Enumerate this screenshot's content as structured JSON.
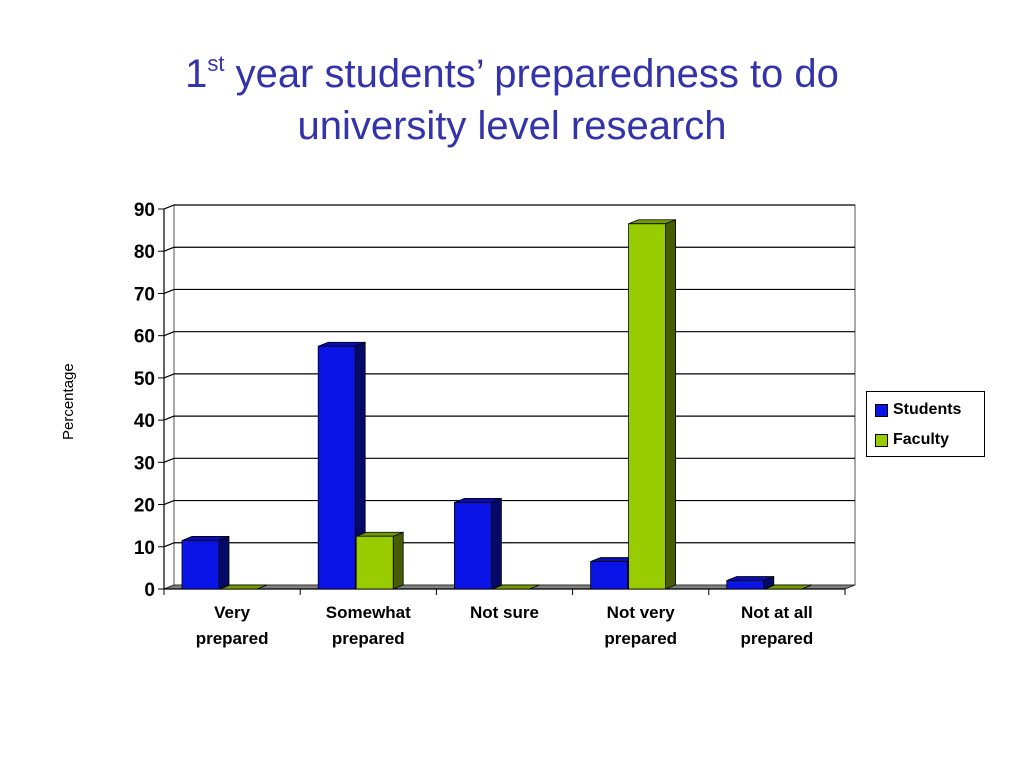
{
  "title": {
    "prefix": "1",
    "superscript": "st",
    "line1_rest": " year students’ preparedness to do",
    "line2": "university level research"
  },
  "colors": {
    "students": "#0a14e6",
    "faculty": "#99cc00",
    "title": "#3333aa"
  },
  "chart_data": {
    "type": "bar",
    "categories": [
      [
        "Very",
        "prepared"
      ],
      [
        "Somewhat",
        "prepared"
      ],
      [
        "Not sure"
      ],
      [
        "Not very",
        "prepared"
      ],
      [
        "Not at all",
        "prepared"
      ]
    ],
    "series": [
      {
        "name": "Students",
        "values": [
          11.5,
          57.5,
          20.5,
          6.5,
          2
        ]
      },
      {
        "name": "Faculty",
        "values": [
          0,
          12.5,
          0,
          86.5,
          0
        ]
      }
    ],
    "ylabel": "Percentage",
    "ylim": [
      0,
      90
    ],
    "yticks": [
      0,
      10,
      20,
      30,
      40,
      50,
      60,
      70,
      80,
      90
    ],
    "grid": true,
    "legend_position": "right",
    "three_d": true
  }
}
